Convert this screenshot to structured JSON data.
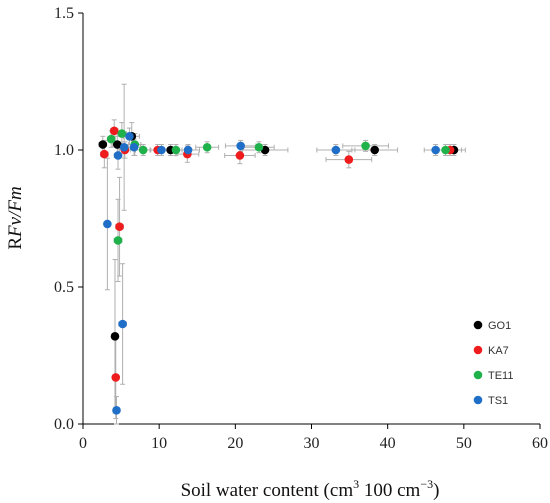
{
  "chart_data": {
    "type": "scatter",
    "xlabel": {
      "main": "Soil water content (cm",
      "sup1": "3",
      "mid": " 100 cm",
      "sup2": "−3",
      "end": ")"
    },
    "ylabel": {
      "prefix": "R",
      "italic": "Fv/Fm"
    },
    "xlim": [
      0,
      60
    ],
    "ylim": [
      0,
      1.5
    ],
    "x_ticks": [
      {
        "value": 0,
        "label": "0"
      },
      {
        "value": 10,
        "label": "10"
      },
      {
        "value": 20,
        "label": "20"
      },
      {
        "value": 30,
        "label": "30"
      },
      {
        "value": 40,
        "label": "40"
      },
      {
        "value": 50,
        "label": "50"
      },
      {
        "value": 60,
        "label": "60"
      }
    ],
    "y_ticks": [
      {
        "value": 0,
        "label": "0.0"
      },
      {
        "value": 0.5,
        "label": "0.5"
      },
      {
        "value": 1.0,
        "label": "1.0"
      },
      {
        "value": 1.5,
        "label": "1.5"
      }
    ],
    "legend_position": "bottom-right",
    "series": [
      {
        "name": "GO1",
        "color": "#000000",
        "points": [
          {
            "x": 2.6,
            "y": 1.02,
            "xerr": 0.5,
            "yerr": 0.03
          },
          {
            "x": 4.5,
            "y": 1.02,
            "xerr": 0.6,
            "yerr": 0.03
          },
          {
            "x": 6.4,
            "y": 1.05,
            "xerr": 1.0,
            "yerr": 0.05
          },
          {
            "x": 11.5,
            "y": 1.0,
            "xerr": 1.5,
            "yerr": 0.02
          },
          {
            "x": 23.9,
            "y": 1.0,
            "xerr": 3.0,
            "yerr": 0.02
          },
          {
            "x": 38.3,
            "y": 1.0,
            "xerr": 3.0,
            "yerr": 0.02
          },
          {
            "x": 48.7,
            "y": 1.0,
            "xerr": 1.5,
            "yerr": 0.02
          },
          {
            "x": 4.2,
            "y": 0.32,
            "xerr": 0.4,
            "yerr": 0.28
          }
        ]
      },
      {
        "name": "KA7",
        "color": "#ee1c1c",
        "points": [
          {
            "x": 2.8,
            "y": 0.985,
            "xerr": 0.5,
            "yerr": 0.05
          },
          {
            "x": 4.1,
            "y": 1.07,
            "xerr": 0.5,
            "yerr": 0.04
          },
          {
            "x": 5.5,
            "y": 1.0,
            "xerr": 0.7,
            "yerr": 0.03
          },
          {
            "x": 9.8,
            "y": 1.0,
            "xerr": 1.5,
            "yerr": 0.02
          },
          {
            "x": 13.7,
            "y": 0.985,
            "xerr": 1.5,
            "yerr": 0.03
          },
          {
            "x": 20.6,
            "y": 0.98,
            "xerr": 2.0,
            "yerr": 0.03
          },
          {
            "x": 34.9,
            "y": 0.965,
            "xerr": 3.0,
            "yerr": 0.03
          },
          {
            "x": 48.2,
            "y": 1.0,
            "xerr": 1.5,
            "yerr": 0.02
          },
          {
            "x": 4.8,
            "y": 0.72,
            "xerr": 0.5,
            "yerr": 0.18
          },
          {
            "x": 4.3,
            "y": 0.17,
            "xerr": 0.4,
            "yerr": 0.15
          }
        ]
      },
      {
        "name": "TE11",
        "color": "#1fb24a",
        "points": [
          {
            "x": 3.7,
            "y": 1.04,
            "xerr": 0.5,
            "yerr": 0.03
          },
          {
            "x": 5.1,
            "y": 1.06,
            "xerr": 0.6,
            "yerr": 0.04
          },
          {
            "x": 6.8,
            "y": 1.02,
            "xerr": 0.8,
            "yerr": 0.04
          },
          {
            "x": 7.9,
            "y": 1.0,
            "xerr": 1.0,
            "yerr": 0.02
          },
          {
            "x": 12.2,
            "y": 1.0,
            "xerr": 1.5,
            "yerr": 0.02
          },
          {
            "x": 16.3,
            "y": 1.01,
            "xerr": 1.5,
            "yerr": 0.02
          },
          {
            "x": 23.1,
            "y": 1.01,
            "xerr": 2.0,
            "yerr": 0.02
          },
          {
            "x": 37.1,
            "y": 1.015,
            "xerr": 3.0,
            "yerr": 0.02
          },
          {
            "x": 47.6,
            "y": 1.0,
            "xerr": 1.5,
            "yerr": 0.02
          },
          {
            "x": 4.6,
            "y": 0.67,
            "xerr": 0.5,
            "yerr": 0.15
          }
        ]
      },
      {
        "name": "TS1",
        "color": "#1f6fc8",
        "points": [
          {
            "x": 3.2,
            "y": 0.73,
            "xerr": 0.4,
            "yerr": 0.24
          },
          {
            "x": 4.6,
            "y": 0.98,
            "xerr": 0.5,
            "yerr": 0.05
          },
          {
            "x": 5.4,
            "y": 1.01,
            "xerr": 0.6,
            "yerr": 0.23
          },
          {
            "x": 6.1,
            "y": 1.05,
            "xerr": 0.8,
            "yerr": 0.03
          },
          {
            "x": 6.7,
            "y": 1.01,
            "xerr": 0.8,
            "yerr": 0.03
          },
          {
            "x": 10.3,
            "y": 1.0,
            "xerr": 1.5,
            "yerr": 0.02
          },
          {
            "x": 13.8,
            "y": 1.0,
            "xerr": 1.5,
            "yerr": 0.02
          },
          {
            "x": 20.7,
            "y": 1.015,
            "xerr": 2.0,
            "yerr": 0.02
          },
          {
            "x": 33.2,
            "y": 1.0,
            "xerr": 2.5,
            "yerr": 0.02
          },
          {
            "x": 46.3,
            "y": 1.0,
            "xerr": 1.5,
            "yerr": 0.02
          },
          {
            "x": 5.2,
            "y": 0.365,
            "xerr": 0.5,
            "yerr": 0.22
          },
          {
            "x": 4.4,
            "y": 0.05,
            "xerr": 0.4,
            "yerr": 0.05
          }
        ]
      }
    ]
  }
}
